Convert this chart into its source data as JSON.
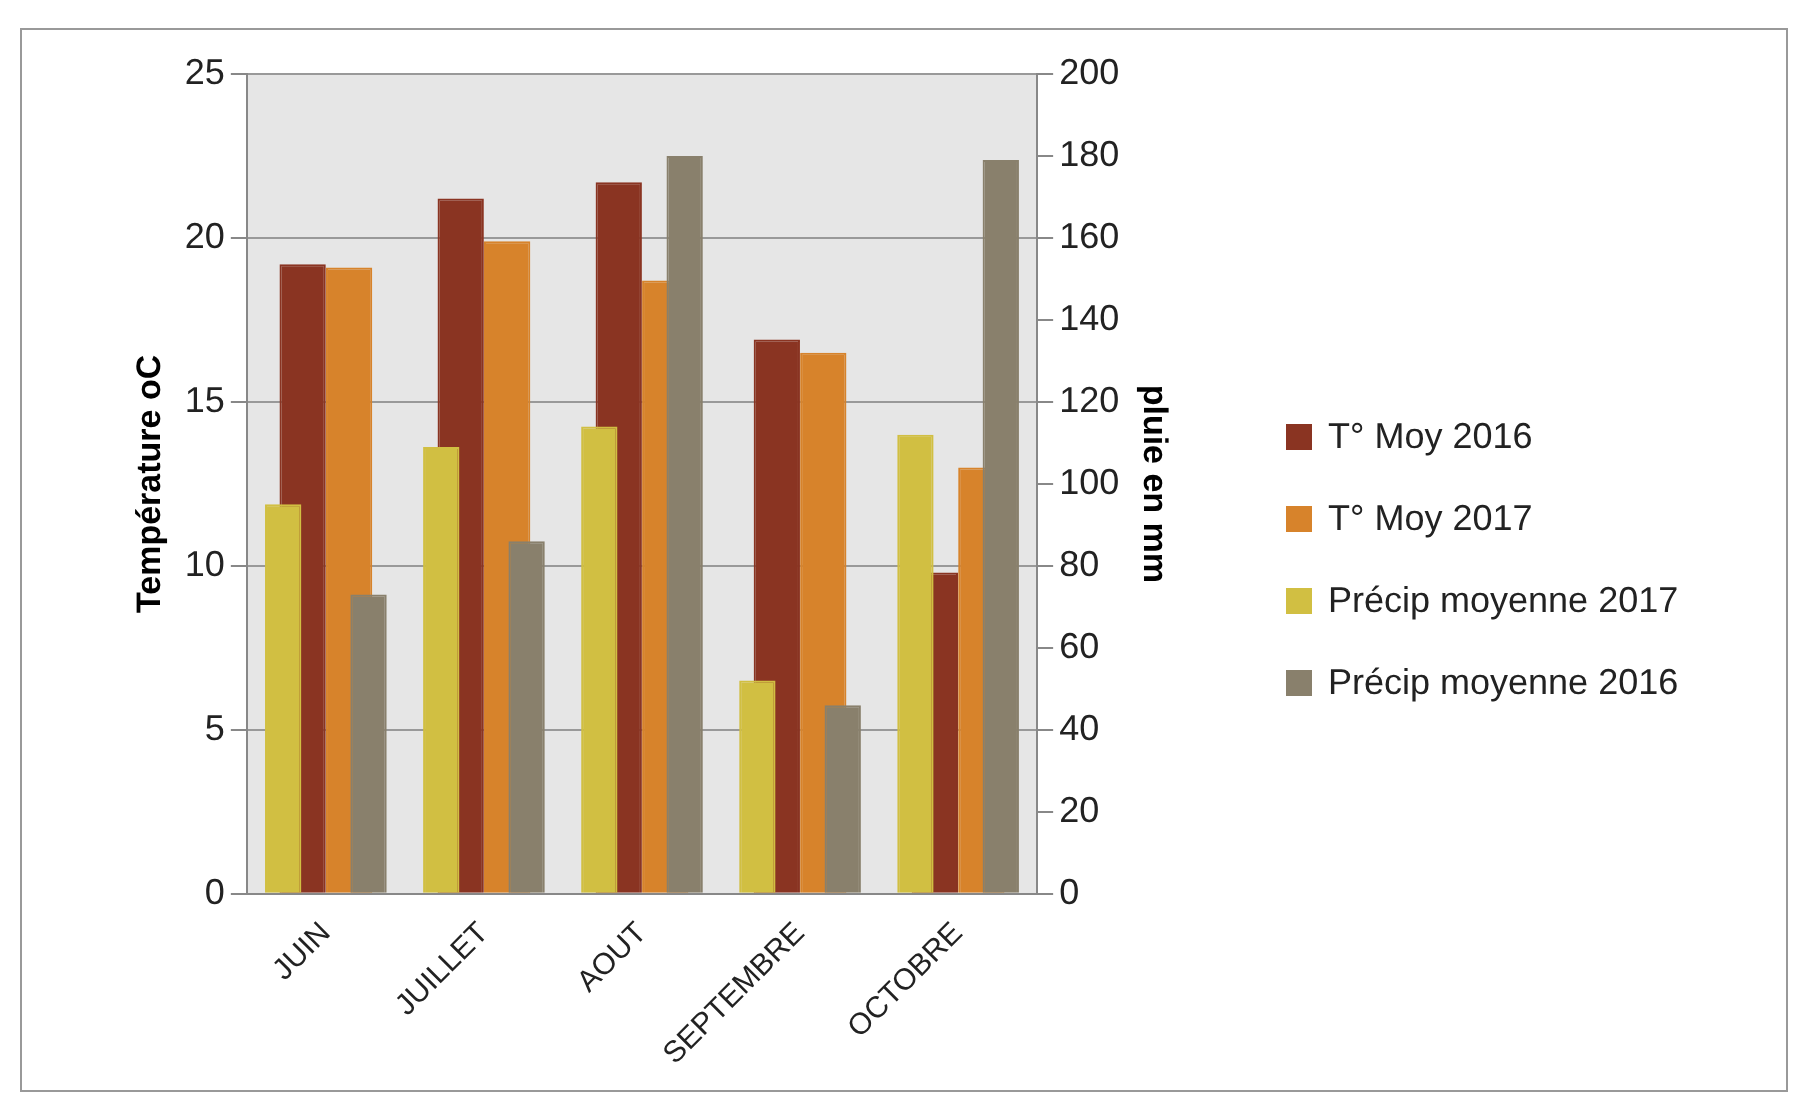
{
  "chart_data": {
    "type": "bar",
    "ylabel": "Température oC",
    "y2label": "pluie en mm",
    "categories": [
      "JUIN",
      "JUILLET",
      "AOUT",
      "SEPTEMBRE",
      "OCTOBRE"
    ],
    "series": [
      {
        "name": "T° Moy  2016",
        "color": "#8a3422",
        "values": [
          19.2,
          21.2,
          21.7,
          16.9,
          9.8
        ]
      },
      {
        "name": "T° Moy  2017",
        "color": "#d7832b",
        "values": [
          19.1,
          19.9,
          18.7,
          16.5,
          13.0
        ]
      },
      {
        "name": "Précip moyenne 2017",
        "color": "#d1bf42",
        "axis": "y2",
        "values": [
          95,
          109,
          114,
          52,
          112
        ]
      },
      {
        "name": "Précip moyenne 2016",
        "color": "#89806c",
        "axis": "y2",
        "values": [
          73,
          86,
          180,
          46,
          179
        ]
      }
    ],
    "ylim": [
      0,
      25
    ],
    "yticks": [
      0,
      5,
      10,
      15,
      20,
      25
    ],
    "y2lim": [
      0,
      200
    ],
    "y2ticks": [
      0,
      20,
      40,
      60,
      80,
      100,
      120,
      140,
      160,
      180,
      200
    ],
    "grid": "y",
    "legend": "right"
  }
}
